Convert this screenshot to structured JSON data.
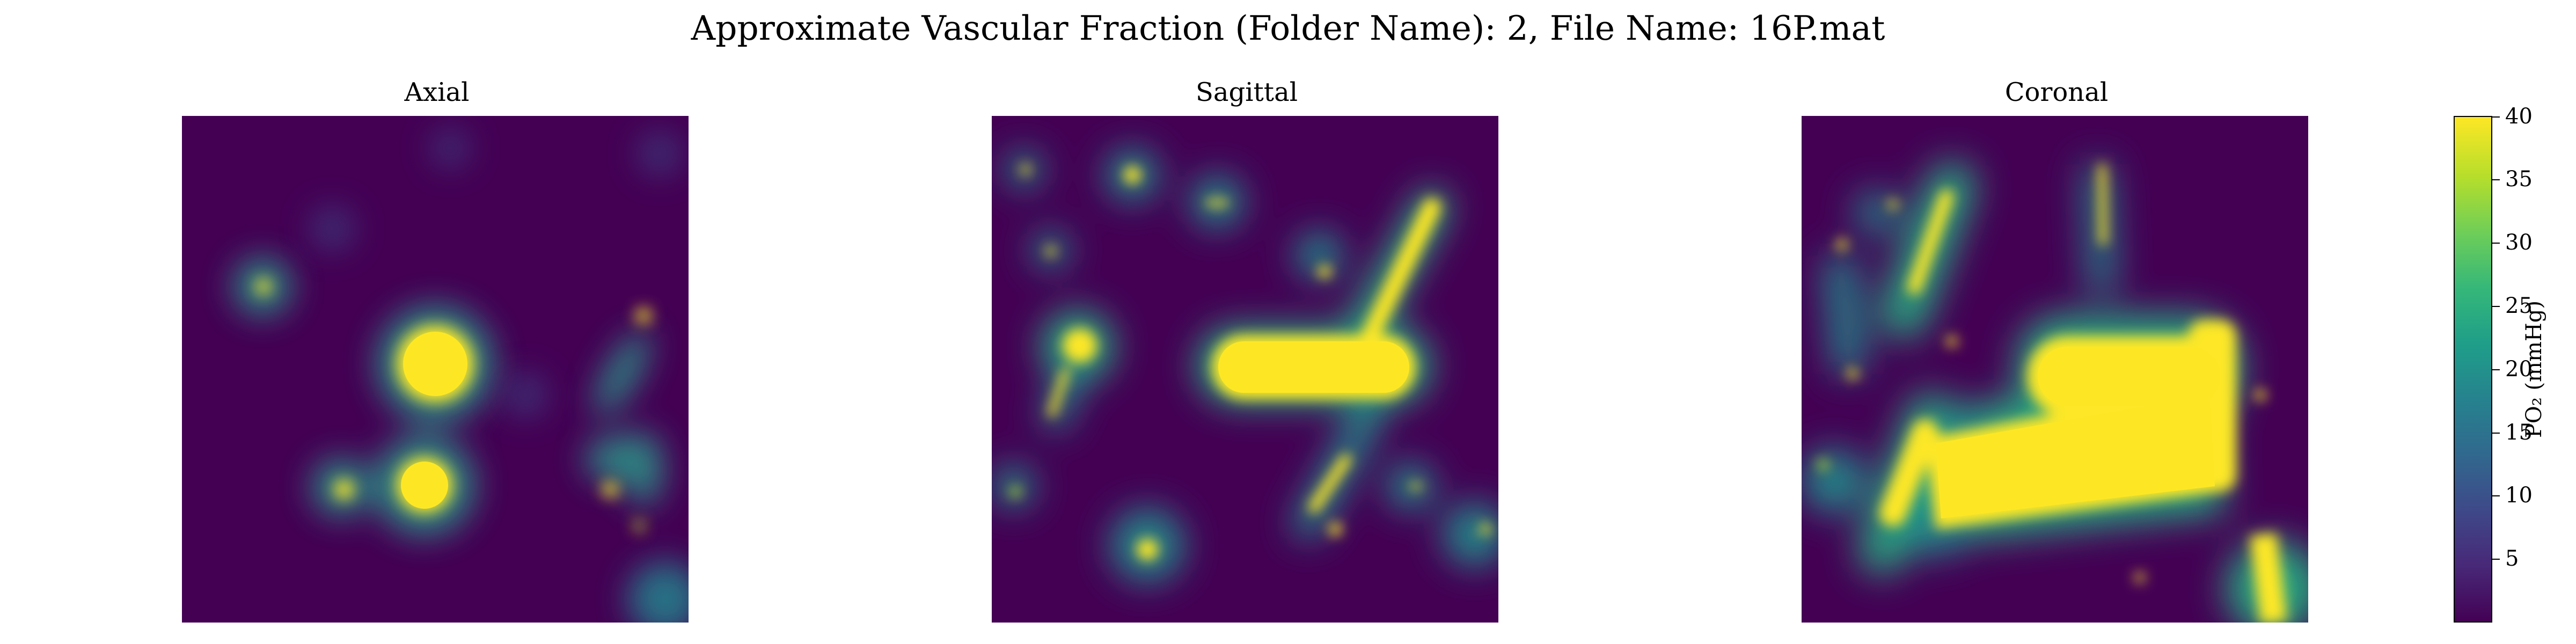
{
  "suptitle": "Approximate Vascular Fraction (Folder Name): 2, File Name: 16P.mat",
  "panels": [
    {
      "title": "Axial"
    },
    {
      "title": "Sagittal"
    },
    {
      "title": "Coronal"
    }
  ],
  "colorbar": {
    "label": "PO₂ (mmHg)",
    "ticks": [
      "5",
      "10",
      "15",
      "20",
      "25",
      "30",
      "35",
      "40"
    ],
    "colormap": "viridis",
    "min_color": "#440154",
    "max_color": "#fde725"
  },
  "chart_data": {
    "type": "heatmap",
    "title": "Approximate Vascular Fraction (Folder Name): 2, File Name: 16P.mat",
    "subplots": [
      "Axial",
      "Sagittal",
      "Coronal"
    ],
    "colorbar_label": "PO₂ (mmHg)",
    "vmin": 0,
    "vmax": 40,
    "colorbar_ticks": [
      5,
      10,
      15,
      20,
      25,
      30,
      35,
      40
    ],
    "axes_visible": false
  }
}
